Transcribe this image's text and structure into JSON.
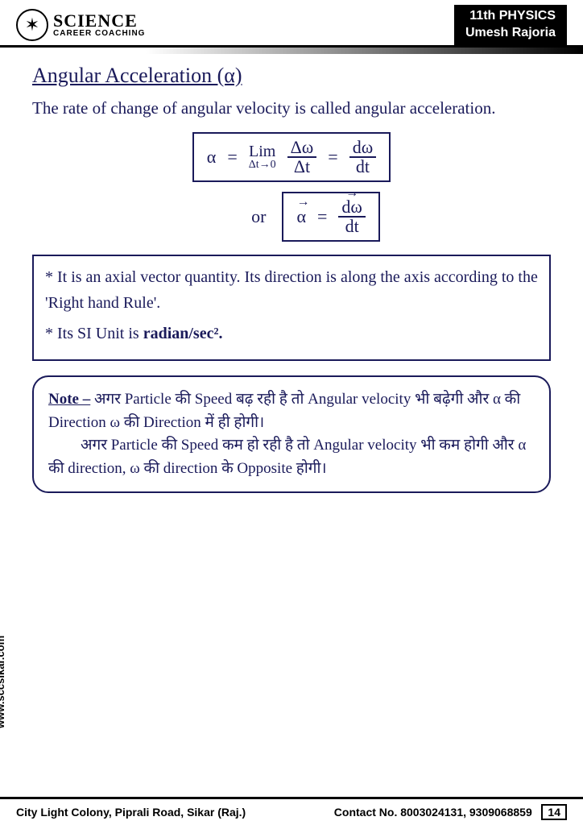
{
  "header": {
    "logo_main": "SCIENCE",
    "logo_sub": "CAREER COACHING",
    "right_line1": "11th PHYSICS",
    "right_line2": "Umesh Rajoria"
  },
  "title": "Angular Acceleration (α)",
  "definition": "The rate of change of angular velocity is called angular acceleration.",
  "eq1": {
    "lhs": "α",
    "eq": "=",
    "lim_top": "Lim",
    "lim_bot": "Δt→0",
    "frac1_top": "Δω",
    "frac1_bot": "Δt",
    "eq2": "=",
    "frac2_top": "dω",
    "frac2_bot": "dt"
  },
  "or_label": "or",
  "eq2": {
    "lhs": "α",
    "eq": "=",
    "frac_top": "dω",
    "frac_bot": "dt"
  },
  "bullets": {
    "b1": "* It is an axial vector quantity. Its direction is along the axis according to the 'Right hand Rule'.",
    "b2_pre": "* Its SI Unit is ",
    "b2_bold": "radian/sec²."
  },
  "note": {
    "label": "Note –",
    "line1": " अगर Particle की Speed बढ़ रही है तो Angular velocity भी बढ़ेगी और α की Direction ω की Direction में ही होगी।",
    "line2": "अगर Particle की Speed कम हो रही है तो Angular velocity भी कम होगी और α की direction, ω की direction के Opposite होगी।"
  },
  "side_url": "www.sccsikar.com",
  "footer": {
    "address": "City Light Colony, Piprali Road, Sikar (Raj.)",
    "contact": "Contact No. 8003024131, 9309068859",
    "page": "14"
  },
  "colors": {
    "ink": "#1a1a5a",
    "black": "#000000",
    "white": "#ffffff"
  }
}
